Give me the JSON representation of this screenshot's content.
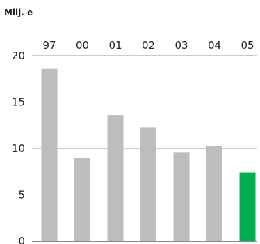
{
  "chart_data": {
    "type": "bar",
    "unit_label": "Milj. e",
    "categories": [
      "97",
      "00",
      "01",
      "02",
      "03",
      "04",
      "05"
    ],
    "values": [
      18.6,
      9.0,
      13.6,
      12.3,
      9.6,
      10.3,
      7.4
    ],
    "ylim": [
      0,
      20
    ],
    "yticks": [
      0,
      5,
      10,
      15,
      20
    ],
    "grid": true,
    "category_labels_position": "top",
    "bar_colors": [
      "#bdbdbd",
      "#bdbdbd",
      "#bdbdbd",
      "#bdbdbd",
      "#bdbdbd",
      "#bdbdbd",
      "#00b050"
    ]
  }
}
